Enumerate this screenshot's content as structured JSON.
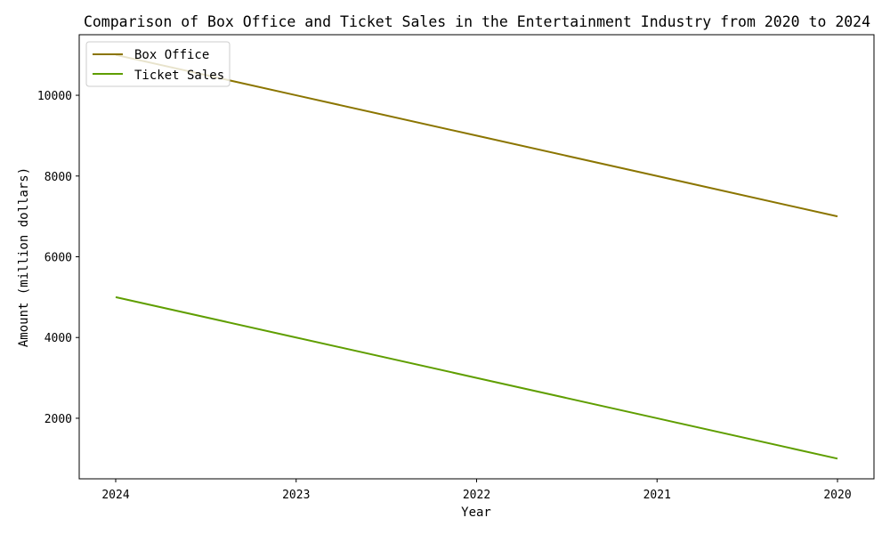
{
  "chart_data": {
    "type": "line",
    "title": "Comparison of Box Office and Ticket Sales in the Entertainment Industry from 2020 to 2024",
    "xlabel": "Year",
    "ylabel": "Amount (million dollars)",
    "categories": [
      "2024",
      "2023",
      "2022",
      "2021",
      "2020"
    ],
    "series": [
      {
        "name": "Box Office",
        "values": [
          11000,
          10000,
          9000,
          8000,
          7000
        ],
        "color": "#8B7500"
      },
      {
        "name": "Ticket Sales",
        "values": [
          5000,
          4000,
          3000,
          2000,
          1000
        ],
        "color": "#5F9E00"
      }
    ],
    "ylim": [
      500,
      11500
    ],
    "yticks": [
      2000,
      4000,
      6000,
      8000,
      10000
    ],
    "grid": false,
    "legend_position": "top-left"
  }
}
